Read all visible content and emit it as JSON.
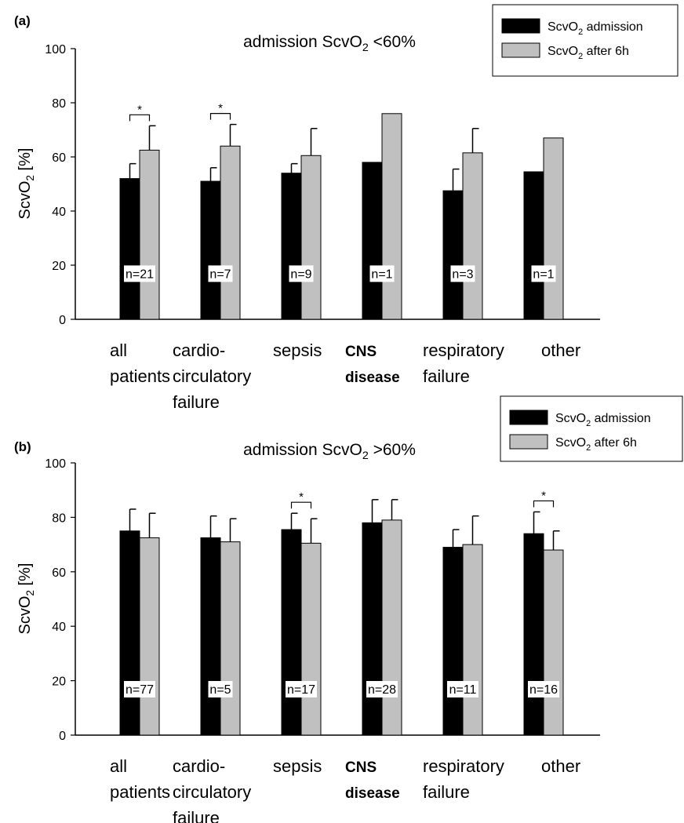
{
  "chart_data": [
    {
      "type": "bar",
      "panel_label": "(a)",
      "title": "admission ScvO2 <60%",
      "ylabel": "ScvO2 [%]",
      "ylim": [
        0,
        100
      ],
      "yticks": [
        0,
        20,
        40,
        60,
        80,
        100
      ],
      "grid": false,
      "legend_position": "top-right",
      "categories": [
        "all patients",
        "cardio-circulatory failure",
        "sepsis",
        "CNS disease",
        "respiratory failure",
        "other"
      ],
      "series": [
        {
          "name": "ScvO2 admission",
          "color": "#000000",
          "values": [
            52,
            51,
            54,
            58,
            47.5,
            54.5
          ],
          "error": [
            5.5,
            5,
            3.5,
            null,
            8,
            null
          ]
        },
        {
          "name": "ScvO2 after 6h",
          "color": "#c0c0c0",
          "values": [
            62.5,
            64,
            60.5,
            76,
            61.5,
            67
          ],
          "error": [
            9,
            8,
            10,
            null,
            9,
            null
          ]
        }
      ],
      "n_labels": [
        "n=21",
        "n=7",
        "n=9",
        "n=1",
        "n=3",
        "n=1"
      ],
      "significance": [
        {
          "category": "all patients",
          "label": "*"
        },
        {
          "category": "cardio-circulatory failure",
          "label": "*"
        }
      ]
    },
    {
      "type": "bar",
      "panel_label": "(b)",
      "title": "admission ScvO2 >60%",
      "ylabel": "ScvO2 [%]",
      "ylim": [
        0,
        100
      ],
      "yticks": [
        0,
        20,
        40,
        60,
        80,
        100
      ],
      "grid": false,
      "legend_position": "top-right",
      "categories": [
        "all patients",
        "cardio-circulatory failure",
        "sepsis",
        "CNS disease",
        "respiratory failure",
        "other"
      ],
      "series": [
        {
          "name": "ScvO2 admission",
          "color": "#000000",
          "values": [
            75,
            72.5,
            75.5,
            78,
            69,
            74
          ],
          "error": [
            8,
            8,
            6,
            8.5,
            6.5,
            8
          ]
        },
        {
          "name": "ScvO2 after 6h",
          "color": "#c0c0c0",
          "values": [
            72.5,
            71,
            70.5,
            79,
            70,
            68
          ],
          "error": [
            9,
            8.5,
            9,
            7.5,
            10.5,
            7
          ]
        }
      ],
      "n_labels": [
        "n=77",
        "n=5",
        "n=17",
        "n=28",
        "n=11",
        "n=16"
      ],
      "significance": [
        {
          "category": "sepsis",
          "label": "*"
        },
        {
          "category": "other",
          "label": "*"
        }
      ]
    }
  ]
}
